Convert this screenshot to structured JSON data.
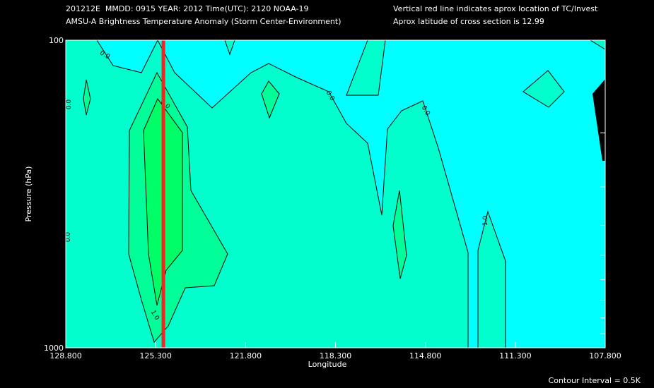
{
  "header": {
    "line1_left": "201212E  MMDD: 0915 YEAR: 2012 Time(UTC): 2120 NOAA-19",
    "line2_left": "AMSU-A Brightness Temperature Anomaly (Storm Center-Environment)",
    "line1_right": "Vertical red line indicates aprox location of TC/Invest",
    "line2_right": "Aprox latitude of cross section is 12.99"
  },
  "footer": {
    "contour_interval": "Contour Interval = 0.5K"
  },
  "colors": {
    "background": "#000000",
    "plot_bg": "#00ffff",
    "level_0": "#00ffcc",
    "level_05": "#00ff99",
    "level_10": "#00ff66",
    "tc_line": "#ff2020",
    "contour_line": "#000000"
  },
  "chart_data": {
    "type": "contour",
    "title": "AMSU-A Brightness Temperature Anomaly (Storm Center-Environment)",
    "xlabel": "Longitude",
    "ylabel": "Pressure (hPa)",
    "x_tick_labels": [
      "128.800",
      "125.300",
      "121.800",
      "118.300",
      "114.800",
      "111.300",
      "107.800"
    ],
    "x_ticks": [
      128.8,
      125.3,
      121.8,
      118.3,
      114.8,
      111.3,
      107.8
    ],
    "xlim": [
      128.8,
      107.8
    ],
    "y_tick_labels": [
      "100",
      "1000"
    ],
    "ylim": [
      1000,
      100
    ],
    "yscale": "log",
    "contour_levels": [
      0.0,
      0.5,
      1.0
    ],
    "contour_labels": [
      "0.0",
      "0.0",
      "0.0",
      "0.0",
      "0.0",
      "0.0",
      "1.0",
      "1.0"
    ],
    "tc_longitude": 125.0,
    "cross_section_latitude": 12.99,
    "contour_interval": 0.5,
    "contour_interval_units": "K"
  }
}
